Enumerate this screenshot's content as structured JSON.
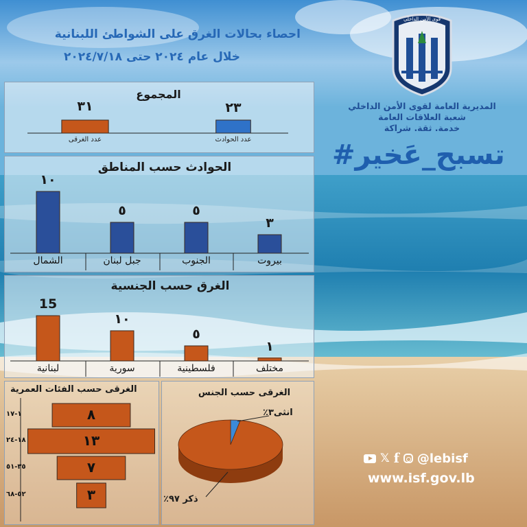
{
  "header": {
    "line1": "احصاء بحالات الغرق على الشواطئ اللبنانية",
    "line2": "خلال عام ٢٠٢٤ حتى ٢٠٢٤/٧/١٨"
  },
  "logo": {
    "emblem_text": "قوى الأمن الداخلي",
    "line1": "المديرية العامة لقوى الأمن الداخلي",
    "line2": "شعبة العلاقات العامة",
    "line3": "خدمة. ثقة. شراكة"
  },
  "hashtag": "#تسبح_عَخير",
  "social": {
    "handle": "@lebisf",
    "website": "www.isf.gov.lb"
  },
  "colors": {
    "blue": "#2a4f9a",
    "orange": "#c5571b",
    "blue_light": "#2f72c8",
    "pie_blue": "#3b8ad8"
  },
  "chart_data": [
    {
      "type": "bar",
      "title": "المجموع",
      "categories": [
        "عدد الحوادث",
        "عدد الغرقى"
      ],
      "values": [
        23,
        31
      ],
      "value_labels": [
        "٢٣",
        "٣١"
      ],
      "colors": [
        "#2f72c8",
        "#c5571b"
      ]
    },
    {
      "type": "bar",
      "title": "الحوادث حسب المناطق",
      "categories": [
        "بيروت",
        "الجنوب",
        "جبل لبنان",
        "الشمال"
      ],
      "values": [
        3,
        5,
        5,
        10
      ],
      "value_labels": [
        "٣",
        "٥",
        "٥",
        "١٠"
      ],
      "color": "#2a4f9a"
    },
    {
      "type": "bar",
      "title": "الغرق حسب الجنسية",
      "categories": [
        "مختلف",
        "فلسطينية",
        "سورية",
        "لبنانية"
      ],
      "values": [
        1,
        5,
        10,
        15
      ],
      "value_labels": [
        "١",
        "٥",
        "١٠",
        "15"
      ],
      "color": "#c5571b"
    },
    {
      "type": "bar",
      "title": "الغرقى حسب الفئات العمرية",
      "categories": [
        "١-١٧",
        "١٨-٢٤",
        "٣٥-٥١",
        "٥٢-٦٨"
      ],
      "values": [
        8,
        13,
        7,
        3
      ],
      "value_labels": [
        "٨",
        "١٣",
        "٧",
        "٣"
      ],
      "color": "#c5571b"
    },
    {
      "type": "pie",
      "title": "الغرقى حسب الجنس",
      "categories": [
        "انثى",
        "ذكر"
      ],
      "values": [
        3,
        97
      ],
      "labels": [
        "انثى٣٪",
        "ذكر ٩٧٪"
      ],
      "colors": [
        "#3b8ad8",
        "#c5571b"
      ]
    }
  ]
}
